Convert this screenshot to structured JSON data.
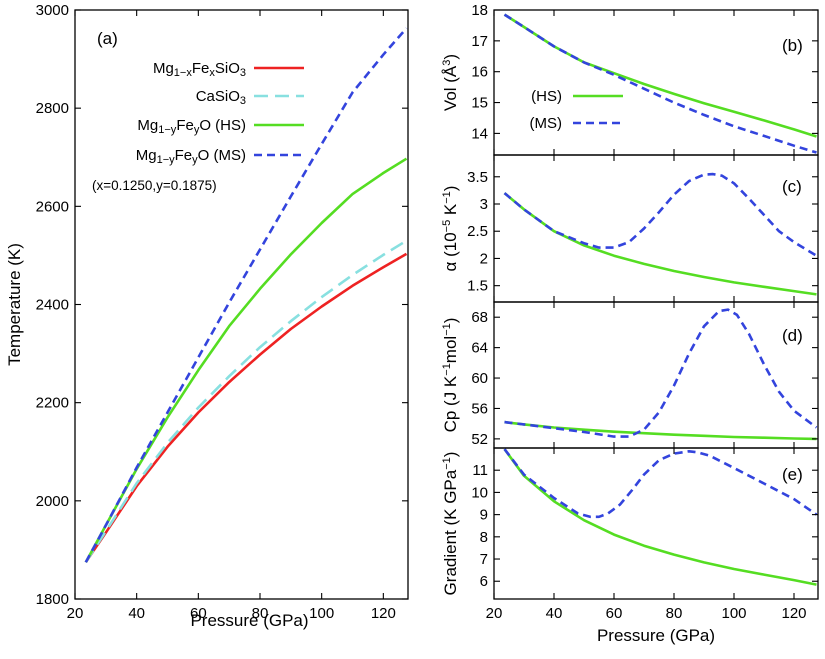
{
  "colors": {
    "red": "#ee2222",
    "cyan": "#88e0e0",
    "green": "#55dd22",
    "blue": "#3344dd"
  },
  "chart_data": [
    {
      "id": "a",
      "type": "line",
      "panel_label": "(a)",
      "xlabel": "Pressure (GPa)",
      "ylabel": "Temperature (K)",
      "xlim": [
        20,
        128
      ],
      "ylim": [
        1800,
        3000
      ],
      "xticks": [
        20,
        40,
        60,
        80,
        100,
        120
      ],
      "yticks": [
        1800,
        2000,
        2200,
        2400,
        2600,
        2800,
        3000
      ],
      "grid": false,
      "legend_position": "top-left",
      "annotation": "(x=0.1250,y=0.1875)",
      "series": [
        {
          "name": "Mg1-xFexSiO3",
          "legend": {
            "base": "Mg",
            "sub1": "1−x",
            "mid": "Fe",
            "sub2": "x",
            "tail": "SiO",
            "sub3": "3",
            "suffix": ""
          },
          "color": "red",
          "dash": "solid",
          "x": [
            23.5,
            30,
            40,
            50,
            60,
            70,
            80,
            90,
            100,
            110,
            120,
            127.5
          ],
          "y": [
            1875,
            1935,
            2030,
            2110,
            2180,
            2242,
            2298,
            2350,
            2396,
            2438,
            2476,
            2503
          ]
        },
        {
          "name": "CaSiO3",
          "legend": {
            "base": "CaSiO",
            "sub1": "3",
            "mid": "",
            "sub2": "",
            "tail": "",
            "sub3": "",
            "suffix": ""
          },
          "color": "cyan",
          "dash": "dashed",
          "x": [
            23.5,
            30,
            40,
            50,
            60,
            70,
            80,
            90,
            100,
            110,
            120,
            127.5
          ],
          "y": [
            1875,
            1938,
            2036,
            2118,
            2190,
            2254,
            2313,
            2366,
            2415,
            2460,
            2501,
            2530
          ]
        },
        {
          "name": "Mg1-yFeyO (HS)",
          "legend": {
            "base": "Mg",
            "sub1": "1−y",
            "mid": "Fe",
            "sub2": "y",
            "tail": "O",
            "sub3": "",
            "suffix": " (HS)"
          },
          "color": "green",
          "dash": "solid",
          "x": [
            23.5,
            30,
            40,
            50,
            60,
            70,
            80,
            90,
            100,
            110,
            120,
            127.5
          ],
          "y": [
            1875,
            1950,
            2065,
            2170,
            2266,
            2356,
            2432,
            2502,
            2566,
            2625,
            2668,
            2697
          ]
        },
        {
          "name": "Mg1-yFeyO (MS)",
          "legend": {
            "base": "Mg",
            "sub1": "1−y",
            "mid": "Fe",
            "sub2": "y",
            "tail": "O",
            "sub3": "",
            "suffix": " (MS)"
          },
          "color": "blue",
          "dash": "short-dashed",
          "x": [
            23.5,
            30,
            40,
            50,
            60,
            70,
            80,
            90,
            100,
            110,
            120,
            127.5
          ],
          "y": [
            1875,
            1950,
            2068,
            2180,
            2292,
            2404,
            2512,
            2620,
            2727,
            2832,
            2909,
            2963
          ]
        }
      ]
    },
    {
      "id": "b",
      "type": "line",
      "panel_label": "(b)",
      "ylabel": "Vol (Å³)",
      "ylabel_parts": {
        "pre": "Vol (",
        "unit": "Å",
        "sup": "3",
        "post": ")"
      },
      "xlim": [
        20,
        128
      ],
      "ylim": [
        13.3,
        18
      ],
      "xticks": [
        20,
        40,
        60,
        80,
        100,
        120
      ],
      "yticks": [
        14,
        15,
        16,
        17,
        18
      ],
      "grid": false,
      "legend_position": "center-left",
      "series": [
        {
          "name": "(HS)",
          "color": "green",
          "dash": "solid",
          "x": [
            23.5,
            30,
            40,
            50,
            60,
            70,
            80,
            90,
            100,
            110,
            120,
            127.5
          ],
          "y": [
            17.85,
            17.45,
            16.82,
            16.3,
            15.95,
            15.6,
            15.28,
            14.98,
            14.7,
            14.42,
            14.13,
            13.9
          ]
        },
        {
          "name": "(MS)",
          "color": "blue",
          "dash": "short-dashed",
          "x": [
            23.5,
            30,
            40,
            50,
            60,
            70,
            80,
            90,
            100,
            110,
            120,
            127.5
          ],
          "y": [
            17.85,
            17.45,
            16.82,
            16.3,
            15.9,
            15.45,
            15.0,
            14.6,
            14.23,
            13.92,
            13.6,
            13.38
          ]
        }
      ]
    },
    {
      "id": "c",
      "type": "line",
      "panel_label": "(c)",
      "ylabel": "α (10⁻⁵ K⁻¹)",
      "ylabel_parts": {
        "pre": "α (10",
        "sup1": "−5",
        "mid": " K",
        "sup2": "−1",
        "post": ")"
      },
      "xlim": [
        20,
        128
      ],
      "ylim": [
        1.2,
        3.9
      ],
      "xticks": [
        20,
        40,
        60,
        80,
        100,
        120
      ],
      "yticks": [
        1.5,
        2,
        2.5,
        3,
        3.5
      ],
      "ytick_labels": [
        "1.5",
        "2",
        "2.5",
        "3",
        "3.5"
      ],
      "grid": false,
      "series": [
        {
          "name": "(HS)",
          "color": "green",
          "dash": "solid",
          "x": [
            23.5,
            30,
            40,
            50,
            60,
            70,
            80,
            90,
            100,
            110,
            120,
            127.5
          ],
          "y": [
            3.2,
            2.9,
            2.5,
            2.24,
            2.05,
            1.9,
            1.77,
            1.66,
            1.56,
            1.48,
            1.4,
            1.34
          ]
        },
        {
          "name": "(MS)",
          "color": "blue",
          "dash": "short-dashed",
          "x": [
            23.5,
            30,
            40,
            50,
            55,
            60,
            65,
            70,
            75,
            80,
            85,
            90,
            93,
            96,
            100,
            105,
            110,
            115,
            120,
            127.5
          ],
          "y": [
            3.2,
            2.9,
            2.5,
            2.28,
            2.2,
            2.2,
            2.3,
            2.55,
            2.85,
            3.17,
            3.42,
            3.54,
            3.55,
            3.52,
            3.38,
            3.1,
            2.8,
            2.5,
            2.3,
            2.05
          ]
        }
      ]
    },
    {
      "id": "d",
      "type": "line",
      "panel_label": "(d)",
      "ylabel": "Cp (J K⁻¹ mol⁻¹)",
      "ylabel_parts": {
        "pre": "Cp (J K",
        "sup1": "−1",
        "mid": "mol",
        "sup2": "−1",
        "post": ")"
      },
      "xlim": [
        20,
        128
      ],
      "ylim": [
        50.8,
        70
      ],
      "xticks": [
        20,
        40,
        60,
        80,
        100,
        120
      ],
      "yticks": [
        52,
        56,
        60,
        64,
        68
      ],
      "grid": false,
      "series": [
        {
          "name": "(HS)",
          "color": "green",
          "dash": "solid",
          "x": [
            23.5,
            30,
            40,
            50,
            60,
            70,
            80,
            90,
            100,
            110,
            120,
            127.5
          ],
          "y": [
            54.2,
            53.9,
            53.5,
            53.2,
            52.95,
            52.75,
            52.55,
            52.4,
            52.25,
            52.15,
            52.05,
            52.0
          ]
        },
        {
          "name": "(MS)",
          "color": "blue",
          "dash": "short-dashed",
          "x": [
            23.5,
            30,
            40,
            50,
            60,
            65,
            70,
            75,
            80,
            85,
            90,
            95,
            98,
            101,
            105,
            110,
            115,
            120,
            127.5
          ],
          "y": [
            54.2,
            53.9,
            53.4,
            52.9,
            52.3,
            52.3,
            53.2,
            55.5,
            59.0,
            63.2,
            66.8,
            68.8,
            69.0,
            68.3,
            65.8,
            61.8,
            58.2,
            55.7,
            53.5
          ]
        }
      ]
    },
    {
      "id": "e",
      "type": "line",
      "panel_label": "(e)",
      "ylabel": "Gradient (K GPa⁻¹)",
      "ylabel_parts": {
        "pre": "Gradient (K GPa",
        "sup": "−1",
        "post": ")"
      },
      "xlabel": "Pressure (GPa)",
      "xlim": [
        20,
        128
      ],
      "ylim": [
        5.2,
        12
      ],
      "xticks": [
        20,
        40,
        60,
        80,
        100,
        120
      ],
      "yticks": [
        6,
        7,
        8,
        9,
        10,
        11
      ],
      "grid": false,
      "series": [
        {
          "name": "(HS)",
          "color": "green",
          "dash": "solid",
          "x": [
            23.5,
            30,
            40,
            50,
            60,
            70,
            80,
            90,
            100,
            110,
            120,
            127.5
          ],
          "y": [
            11.95,
            10.75,
            9.6,
            8.75,
            8.1,
            7.6,
            7.2,
            6.85,
            6.55,
            6.3,
            6.05,
            5.85
          ]
        },
        {
          "name": "(MS)",
          "color": "blue",
          "dash": "short-dashed",
          "x": [
            23.5,
            30,
            40,
            48,
            52,
            55,
            58,
            62,
            66,
            70,
            75,
            80,
            85,
            88,
            92,
            100,
            110,
            120,
            127.5
          ],
          "y": [
            11.95,
            10.8,
            9.75,
            9.05,
            8.9,
            8.9,
            9.05,
            9.45,
            10.1,
            10.8,
            11.45,
            11.75,
            11.85,
            11.8,
            11.65,
            11.1,
            10.4,
            9.7,
            9.0
          ]
        }
      ]
    }
  ]
}
